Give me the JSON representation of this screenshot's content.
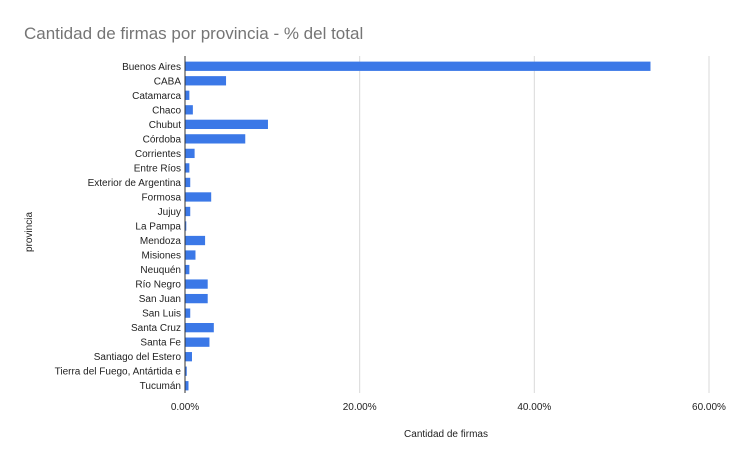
{
  "chart_data": {
    "type": "bar",
    "orientation": "horizontal",
    "title": "Cantidad de firmas por provincia - % del total",
    "xlabel": "Cantidad de firmas",
    "ylabel": "provincia",
    "xlim": [
      0,
      60
    ],
    "xticks": [
      0,
      20,
      40,
      60
    ],
    "xtick_labels": [
      "0.00%",
      "20.00%",
      "40.00%",
      "60.00%"
    ],
    "grid": true,
    "legend": "none",
    "bar_color": "#3b78e7",
    "categories": [
      "Buenos Aires",
      "CABA",
      "Catamarca",
      "Chaco",
      "Chubut",
      "Córdoba",
      "Corrientes",
      "Entre Ríos",
      "Exterior de Argentina",
      "Formosa",
      "Jujuy",
      "La Pampa",
      "Mendoza",
      "Misiones",
      "Neuquén",
      "Río Negro",
      "San Juan",
      "San Luis",
      "Santa Cruz",
      "Santa Fe",
      "Santiago del Estero",
      "Tierra del Fuego, Antártida e",
      "Tucumán"
    ],
    "values": [
      53.3,
      4.7,
      0.5,
      0.9,
      9.5,
      6.9,
      1.1,
      0.5,
      0.6,
      3.0,
      0.6,
      0.15,
      2.3,
      1.2,
      0.5,
      2.6,
      2.6,
      0.6,
      3.3,
      2.8,
      0.8,
      0.2,
      0.4
    ]
  }
}
